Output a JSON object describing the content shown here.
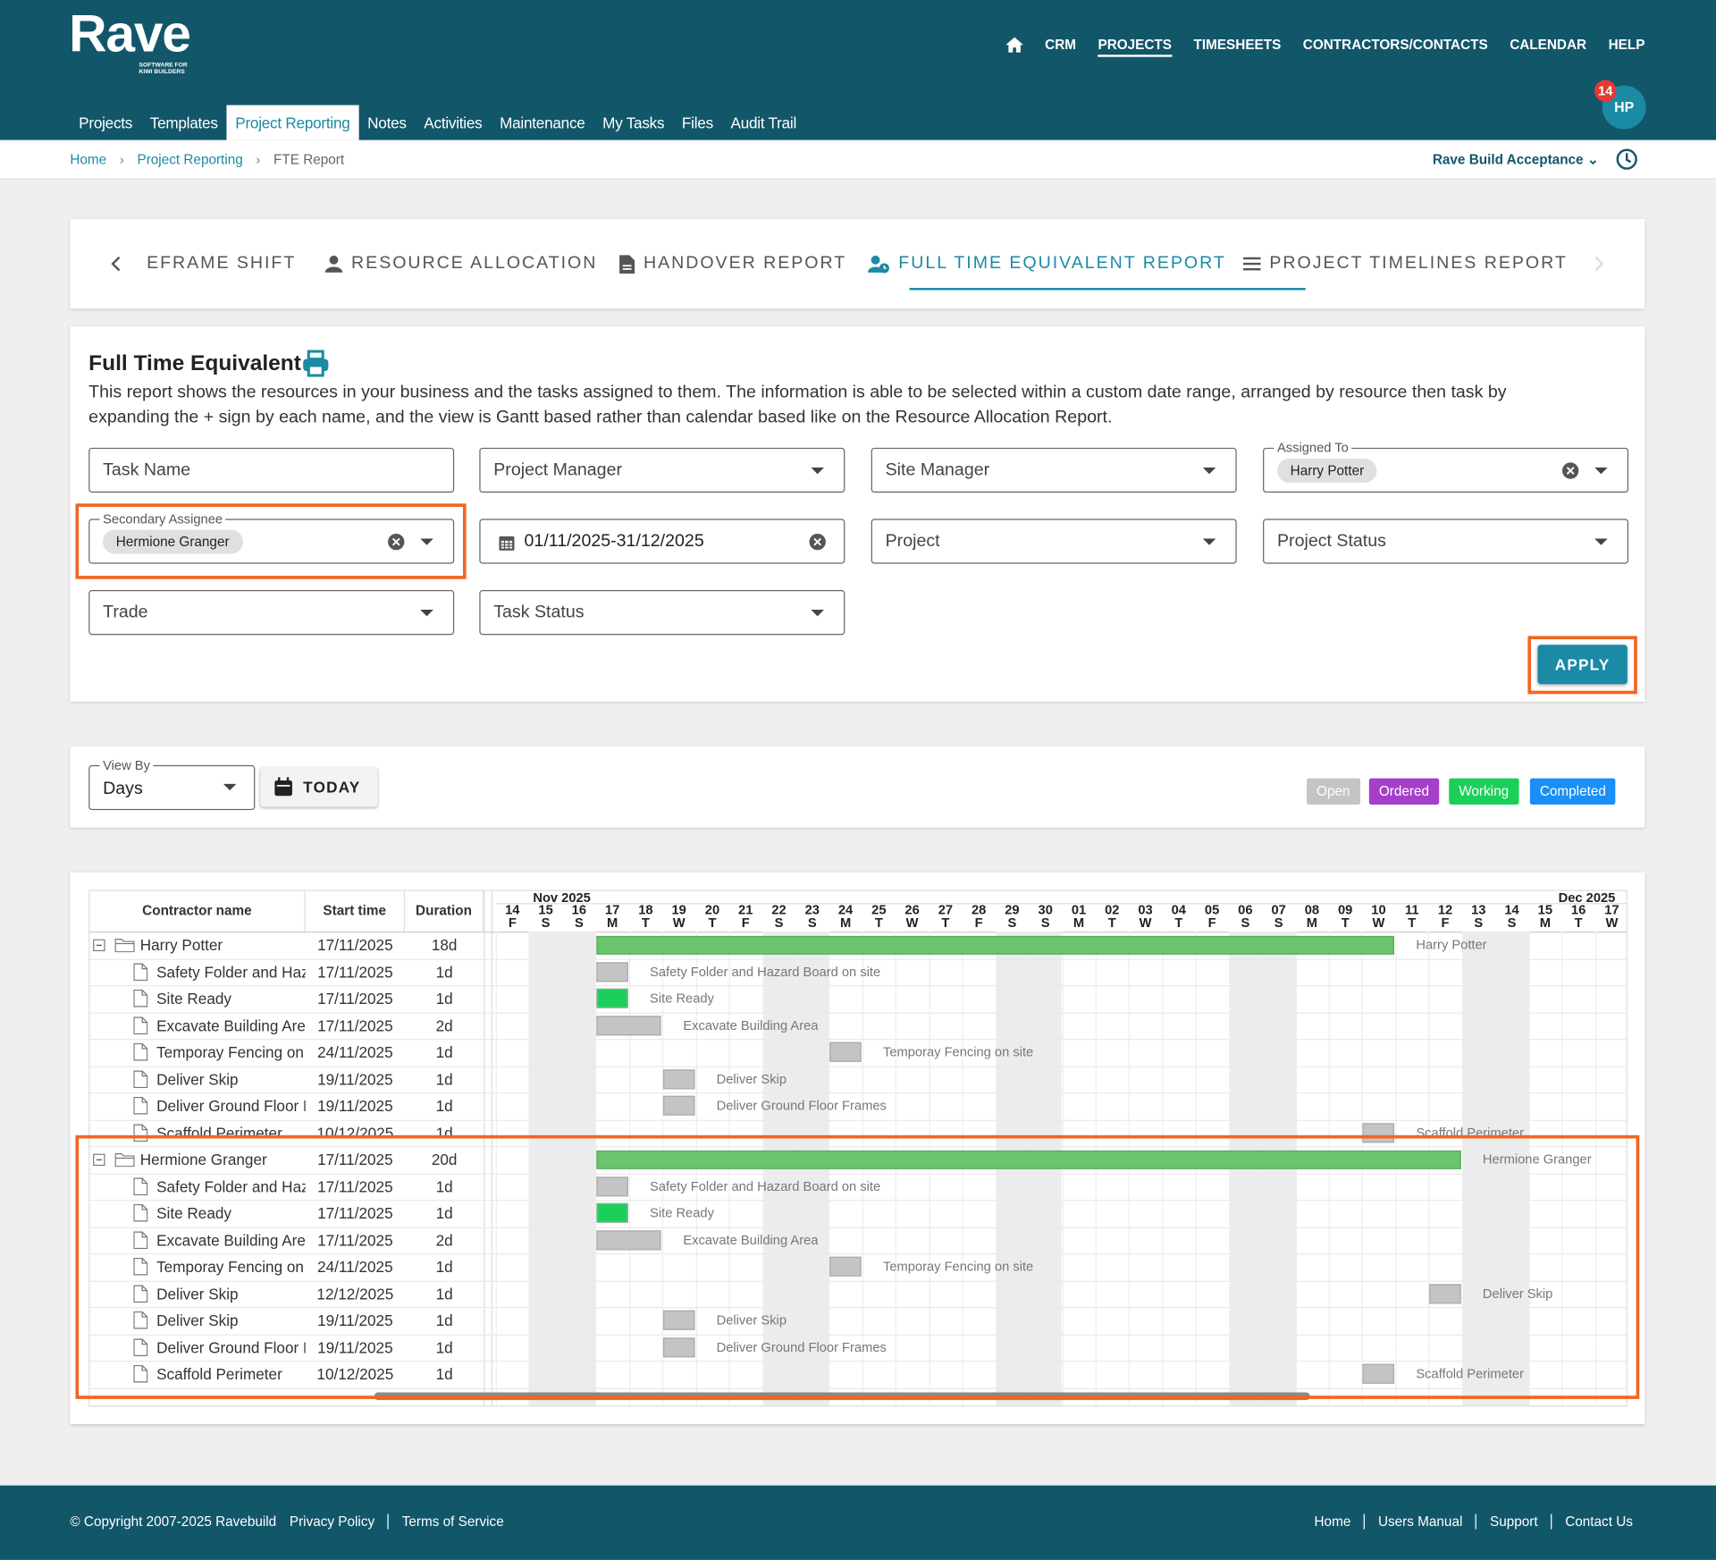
{
  "header": {
    "logo": "Rave",
    "tagline": [
      "SOFTWARE FOR",
      "KIWI BUILDERS"
    ],
    "nav": [
      "CRM",
      "PROJECTS",
      "TIMESHEETS",
      "CONTRACTORS/CONTACTS",
      "CALENDAR",
      "HELP"
    ],
    "notifications": "14",
    "avatar": "HP"
  },
  "subnav": [
    "Projects",
    "Templates",
    "Project Reporting",
    "Notes",
    "Activities",
    "Maintenance",
    "My Tasks",
    "Files",
    "Audit Trail"
  ],
  "breadcrumb": [
    "Home",
    "Project Reporting",
    "FTE Report"
  ],
  "company": "Rave Build Acceptance",
  "tabs": [
    "EFRAME SHIFT",
    "RESOURCE ALLOCATION",
    "HANDOVER REPORT",
    "FULL TIME EQUIVALENT REPORT",
    "PROJECT TIMELINES REPORT"
  ],
  "report": {
    "title": "Full Time Equivalent",
    "description": "This report shows the resources in your business and the tasks assigned to them. The information is able to be selected within a custom date range, arranged by resource then task by expanding the + sign by each name, and the view is Gantt based rather than calendar based like on the Resource Allocation Report."
  },
  "filters": [
    {
      "label": "Task Name"
    },
    {
      "label": "Project Manager"
    },
    {
      "label": "Site Manager"
    },
    {
      "label": "Assigned To",
      "chip": "Harry Potter"
    },
    {
      "label": "Secondary Assignee",
      "chip": "Hermione Granger"
    },
    {
      "value": "01/11/2025-31/12/2025"
    },
    {
      "label": "Project"
    },
    {
      "label": "Project Status"
    },
    {
      "label": "Trade"
    },
    {
      "label": "Task Status"
    }
  ],
  "apply": "APPLY",
  "view": {
    "label": "View By",
    "value": "Days",
    "today": "TODAY",
    "legend": [
      {
        "name": "Open",
        "color": "#c4c4c4"
      },
      {
        "name": "Ordered",
        "color": "#a63fc7"
      },
      {
        "name": "Working",
        "color": "#1ccf5a"
      },
      {
        "name": "Completed",
        "color": "#1a8ff5"
      }
    ]
  },
  "gantt": {
    "columns": [
      "Contractor name",
      "Start time",
      "Duration"
    ],
    "months": [
      "Nov 2025",
      "Dec 2025"
    ],
    "days": [
      "14",
      "15",
      "16",
      "17",
      "18",
      "19",
      "20",
      "21",
      "22",
      "23",
      "24",
      "25",
      "26",
      "27",
      "28",
      "29",
      "30",
      "01",
      "02",
      "03",
      "04",
      "05",
      "06",
      "07",
      "08",
      "09",
      "10",
      "11",
      "12",
      "13",
      "14",
      "15",
      "16",
      "17"
    ],
    "weekdays": [
      "F",
      "S",
      "S",
      "M",
      "T",
      "W",
      "T",
      "F",
      "S",
      "S",
      "M",
      "T",
      "W",
      "T",
      "F",
      "S",
      "S",
      "M",
      "T",
      "W",
      "T",
      "F",
      "S",
      "S",
      "M",
      "T",
      "W",
      "T",
      "F",
      "S",
      "S",
      "M",
      "T",
      "W"
    ],
    "groups": [
      {
        "name": "Harry Potter",
        "start": "17/11/2025",
        "duration": "18d",
        "color": "#6cc46e",
        "tasks": [
          {
            "name": "Safety Folder and Hazard Board on site",
            "start": "17/11/2025",
            "duration": "1d",
            "color": "#c4c4c4"
          },
          {
            "name": "Site Ready",
            "start": "17/11/2025",
            "duration": "1d",
            "color": "#1ccf5a"
          },
          {
            "name": "Excavate Building Area",
            "start": "17/11/2025",
            "duration": "2d",
            "color": "#c4c4c4"
          },
          {
            "name": "Temporay Fencing on site",
            "start": "24/11/2025",
            "duration": "1d",
            "color": "#c4c4c4"
          },
          {
            "name": "Deliver Skip",
            "start": "19/11/2025",
            "duration": "1d",
            "color": "#c4c4c4"
          },
          {
            "name": "Deliver Ground Floor Frames",
            "start": "19/11/2025",
            "duration": "1d",
            "color": "#c4c4c4"
          },
          {
            "name": "Scaffold Perimeter",
            "start": "10/12/2025",
            "duration": "1d",
            "color": "#c4c4c4"
          }
        ]
      },
      {
        "name": "Hermione Granger",
        "start": "17/11/2025",
        "duration": "20d",
        "color": "#6cc46e",
        "tasks": [
          {
            "name": "Safety Folder and Hazard Board on site",
            "start": "17/11/2025",
            "duration": "1d",
            "color": "#c4c4c4"
          },
          {
            "name": "Site Ready",
            "start": "17/11/2025",
            "duration": "1d",
            "color": "#1ccf5a"
          },
          {
            "name": "Excavate Building Area",
            "start": "17/11/2025",
            "duration": "2d",
            "color": "#c4c4c4"
          },
          {
            "name": "Temporay Fencing on site",
            "start": "24/11/2025",
            "duration": "1d",
            "color": "#c4c4c4"
          },
          {
            "name": "Deliver Skip",
            "start": "12/12/2025",
            "duration": "1d",
            "color": "#c4c4c4"
          },
          {
            "name": "Deliver Skip",
            "start": "19/11/2025",
            "duration": "1d",
            "color": "#c4c4c4"
          },
          {
            "name": "Deliver Ground Floor Frames",
            "start": "19/11/2025",
            "duration": "1d",
            "color": "#c4c4c4"
          },
          {
            "name": "Scaffold Perimeter",
            "start": "10/12/2025",
            "duration": "1d",
            "color": "#c4c4c4"
          }
        ]
      }
    ]
  },
  "footer": {
    "copyright": "© Copyright 2007-2025 Ravebuild",
    "left_links": [
      "Privacy Policy",
      "Terms of Service"
    ],
    "right_links": [
      "Home",
      "Users Manual",
      "Support",
      "Contact Us"
    ]
  }
}
